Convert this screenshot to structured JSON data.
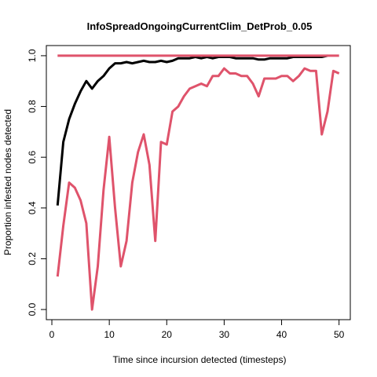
{
  "chart_data": {
    "type": "line",
    "title": "InfoSpreadOngoingCurrentClim_DetProb_0.05",
    "xlabel": "Time since incursion detected (timesteps)",
    "ylabel": "Proportion infested nodes detected",
    "xlim": [
      -0.96,
      51.96
    ],
    "ylim": [
      -0.04,
      1.04
    ],
    "xticks": [
      0,
      10,
      20,
      30,
      40,
      50
    ],
    "yticks": [
      0.0,
      0.2,
      0.4,
      0.6,
      0.8,
      1.0
    ],
    "ytick_labels": [
      "0.0",
      "0.2",
      "0.4",
      "0.6",
      "0.8",
      "1.0"
    ],
    "grid": false,
    "legend": false,
    "series": [
      {
        "color": "#000000",
        "x": [
          1,
          2,
          3,
          4,
          5,
          6,
          7,
          8,
          9,
          10,
          11,
          12,
          13,
          14,
          15,
          16,
          17,
          18,
          19,
          20,
          21,
          22,
          23,
          24,
          25,
          26,
          27,
          28,
          29,
          30,
          31,
          32,
          33,
          34,
          35,
          36,
          37,
          38,
          39,
          40,
          41,
          42,
          43,
          44,
          45,
          46,
          47,
          48
        ],
        "values": [
          0.41,
          0.66,
          0.75,
          0.81,
          0.86,
          0.9,
          0.87,
          0.9,
          0.92,
          0.95,
          0.97,
          0.97,
          0.975,
          0.97,
          0.975,
          0.98,
          0.975,
          0.975,
          0.98,
          0.975,
          0.98,
          0.99,
          0.99,
          0.99,
          0.995,
          0.99,
          0.995,
          0.99,
          0.995,
          0.995,
          0.995,
          0.99,
          0.99,
          0.99,
          0.99,
          0.985,
          0.985,
          0.99,
          0.99,
          0.99,
          0.99,
          0.995,
          0.995,
          0.995,
          0.995,
          0.995,
          0.995,
          1.0
        ]
      },
      {
        "color": "#df536b",
        "x": [
          1,
          2,
          3,
          4,
          5,
          6,
          7,
          8,
          9,
          10,
          11,
          12,
          13,
          14,
          15,
          16,
          17,
          18,
          19,
          20,
          21,
          22,
          23,
          24,
          25,
          26,
          27,
          28,
          29,
          30,
          31,
          32,
          33,
          34,
          35,
          36,
          37,
          38,
          39,
          40,
          41,
          42,
          43,
          44,
          45,
          46,
          47,
          48,
          49,
          50
        ],
        "values": [
          1.0,
          1.0,
          1.0,
          1.0,
          1.0,
          1.0,
          1.0,
          1.0,
          1.0,
          1.0,
          1.0,
          1.0,
          1.0,
          1.0,
          1.0,
          1.0,
          1.0,
          1.0,
          1.0,
          1.0,
          1.0,
          1.0,
          1.0,
          1.0,
          1.0,
          1.0,
          1.0,
          1.0,
          1.0,
          1.0,
          1.0,
          1.0,
          1.0,
          1.0,
          1.0,
          1.0,
          1.0,
          1.0,
          1.0,
          1.0,
          1.0,
          1.0,
          1.0,
          1.0,
          1.0,
          1.0,
          1.0,
          1.0,
          1.0,
          1.0
        ]
      },
      {
        "color": "#df536b",
        "x": [
          1,
          2,
          3,
          4,
          5,
          6,
          7,
          8,
          9,
          10,
          11,
          12,
          13,
          14,
          15,
          16,
          17,
          18,
          19,
          20,
          21,
          22,
          23,
          24,
          25,
          26,
          27,
          28,
          29,
          30,
          31,
          32,
          33,
          34,
          35,
          36,
          37,
          38,
          39,
          40,
          41,
          42,
          43,
          44,
          45,
          46,
          47,
          48,
          49,
          50
        ],
        "values": [
          0.13,
          0.33,
          0.5,
          0.48,
          0.43,
          0.34,
          0.0,
          0.17,
          0.47,
          0.68,
          0.4,
          0.17,
          0.27,
          0.5,
          0.62,
          0.69,
          0.57,
          0.27,
          0.66,
          0.65,
          0.78,
          0.8,
          0.84,
          0.87,
          0.88,
          0.89,
          0.88,
          0.92,
          0.92,
          0.95,
          0.93,
          0.93,
          0.92,
          0.92,
          0.89,
          0.84,
          0.91,
          0.91,
          0.91,
          0.92,
          0.92,
          0.9,
          0.92,
          0.95,
          0.94,
          0.94,
          0.69,
          0.78,
          0.94,
          0.93
        ]
      }
    ]
  }
}
